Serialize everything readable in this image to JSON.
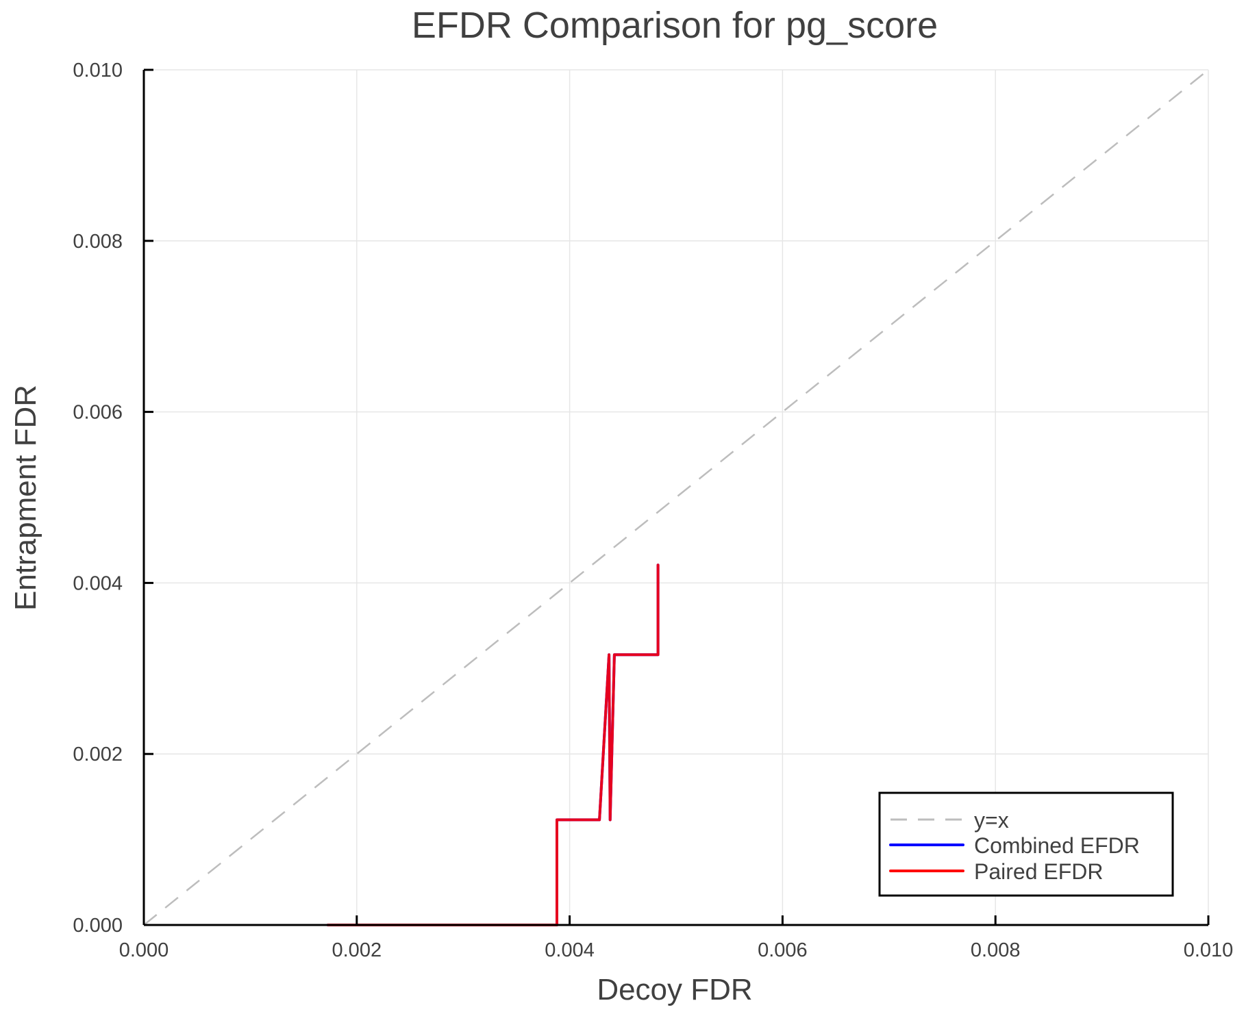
{
  "chart_data": {
    "type": "line",
    "title": "EFDR Comparison for pg_score",
    "xlabel": "Decoy FDR",
    "ylabel": "Entrapment FDR",
    "xlim": [
      0.0,
      0.01
    ],
    "ylim": [
      0.0,
      0.01
    ],
    "grid": true,
    "legend_position": "bottom-right",
    "x_ticks": [
      "0.000",
      "0.002",
      "0.004",
      "0.006",
      "0.008",
      "0.010"
    ],
    "y_ticks": [
      "0.000",
      "0.002",
      "0.004",
      "0.006",
      "0.008",
      "0.010"
    ],
    "x_tick_values": [
      0.0,
      0.002,
      0.004,
      0.006,
      0.008,
      0.01
    ],
    "y_tick_values": [
      0.0,
      0.002,
      0.004,
      0.006,
      0.008,
      0.01
    ],
    "series": [
      {
        "name": "y=x",
        "color": "#bdbdbd",
        "style": "dashed",
        "x": [
          0.0,
          0.01
        ],
        "y": [
          0.0,
          0.01
        ]
      },
      {
        "name": "Combined EFDR",
        "color": "#0000ff",
        "style": "solid",
        "x": [
          0.00173,
          0.00388,
          0.00388,
          0.00428,
          0.00437,
          0.00438,
          0.00438,
          0.00442,
          0.00442,
          0.00483,
          0.00483
        ],
        "y": [
          0.0,
          0.0,
          0.00123,
          0.00123,
          0.00316,
          0.00123,
          0.00123,
          0.00316,
          0.00316,
          0.00316,
          0.00421
        ]
      },
      {
        "name": "Paired EFDR",
        "color": "#ff0000",
        "style": "solid",
        "x": [
          0.00173,
          0.00388,
          0.00388,
          0.00428,
          0.00437,
          0.00438,
          0.00438,
          0.00442,
          0.00442,
          0.00483,
          0.00483
        ],
        "y": [
          0.0,
          0.0,
          0.00123,
          0.00123,
          0.00316,
          0.00123,
          0.00123,
          0.00316,
          0.00316,
          0.00316,
          0.00421
        ]
      }
    ],
    "legend": [
      "y=x",
      "Combined EFDR",
      "Paired EFDR"
    ],
    "overlap_color": "#e6001f"
  }
}
